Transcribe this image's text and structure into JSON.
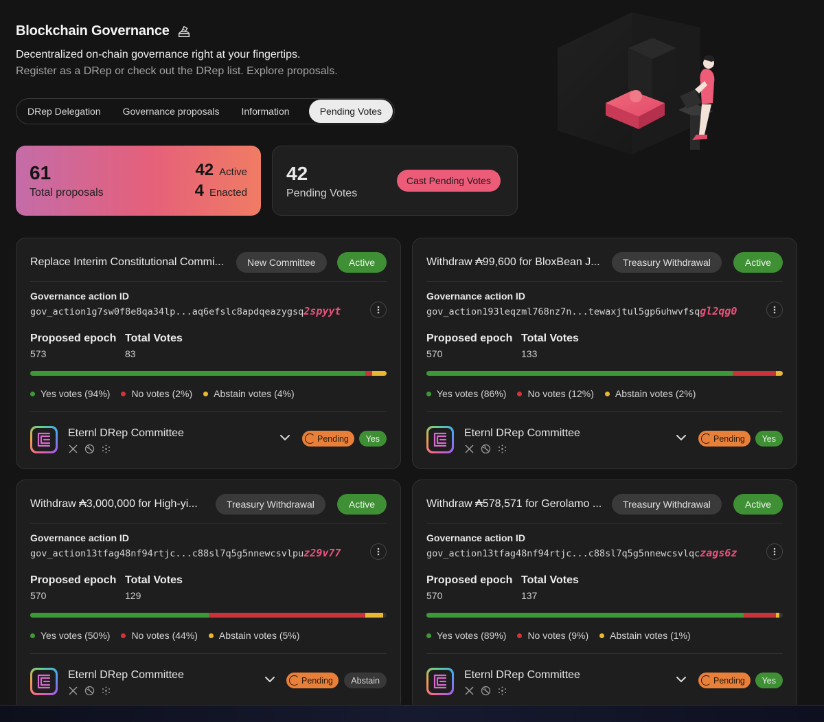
{
  "header": {
    "title": "Blockchain Governance",
    "subtitle": "Decentralized on-chain governance right at your fingertips.",
    "subtitle2": "Register as a DRep or check out the DRep list. Explore proposals."
  },
  "tabs": [
    {
      "label": "DRep Delegation"
    },
    {
      "label": "Governance proposals"
    },
    {
      "label": "Information"
    },
    {
      "label": "Pending Votes",
      "active": true
    }
  ],
  "stats": {
    "total_value": "61",
    "total_label": "Total proposals",
    "active_value": "42",
    "active_label": "Active",
    "enacted_value": "4",
    "enacted_label": "Enacted",
    "pending_value": "42",
    "pending_label": "Pending Votes",
    "cast_label": "Cast Pending Votes"
  },
  "colors": {
    "accent": "#ec5c79",
    "active_green": "#3f8f35",
    "no_red": "#c9343a",
    "abstain_yellow": "#e9b832",
    "pending_orange": "#e8803a"
  },
  "labels": {
    "ga_label": "Governance action ID",
    "epoch_label": "Proposed epoch",
    "votes_label": "Total Votes",
    "status_label": "Active",
    "pending_label": "Pending"
  },
  "cards": [
    {
      "title": "Replace Interim Constitutional Commi...",
      "type": "New Committee",
      "ga_id": "gov_action1g7sw0f8e8qa34lp...aq6efslc8apdqeazygsq",
      "ga_tail": "2spyyt",
      "epoch": "573",
      "total_votes": "83",
      "yes_pct": 94,
      "no_pct": 2,
      "abstain_pct": 4,
      "yes_text": "Yes votes (94%)",
      "no_text": "No votes (2%)",
      "abstain_text": "Abstain votes (4%)",
      "drep_name": "Eternl DRep Committee",
      "vote": "Yes"
    },
    {
      "title": "Withdraw ₳99,600 for BloxBean J...",
      "type": "Treasury Withdrawal",
      "ga_id": "gov_action193leqzml768nz7n...tewaxjtul5gp6uhwvfsq",
      "ga_tail": "gl2qg0",
      "epoch": "570",
      "total_votes": "133",
      "yes_pct": 86,
      "no_pct": 12,
      "abstain_pct": 2,
      "yes_text": "Yes votes (86%)",
      "no_text": "No votes (12%)",
      "abstain_text": "Abstain votes (2%)",
      "drep_name": "Eternl DRep Committee",
      "vote": "Yes"
    },
    {
      "title": "Withdraw ₳3,000,000 for High-yi...",
      "type": "Treasury Withdrawal",
      "ga_id": "gov_action13tfag48nf94rtjc...c88sl7q5g5nnewcsvlpu",
      "ga_tail": "z29v77",
      "epoch": "570",
      "total_votes": "129",
      "yes_pct": 50,
      "no_pct": 44,
      "abstain_pct": 5,
      "yes_text": "Yes votes (50%)",
      "no_text": "No votes (44%)",
      "abstain_text": "Abstain votes (5%)",
      "drep_name": "Eternl DRep Committee",
      "vote": "Abstain"
    },
    {
      "title": "Withdraw ₳578,571 for Gerolamo ...",
      "type": "Treasury Withdrawal",
      "ga_id": "gov_action13tfag48nf94rtjc...c88sl7q5g5nnewcsvlqc",
      "ga_tail": "zags6z",
      "epoch": "570",
      "total_votes": "137",
      "yes_pct": 89,
      "no_pct": 9,
      "abstain_pct": 1,
      "yes_text": "Yes votes (89%)",
      "no_text": "No votes (9%)",
      "abstain_text": "Abstain votes (1%)",
      "drep_name": "Eternl DRep Committee",
      "vote": "Yes"
    }
  ]
}
